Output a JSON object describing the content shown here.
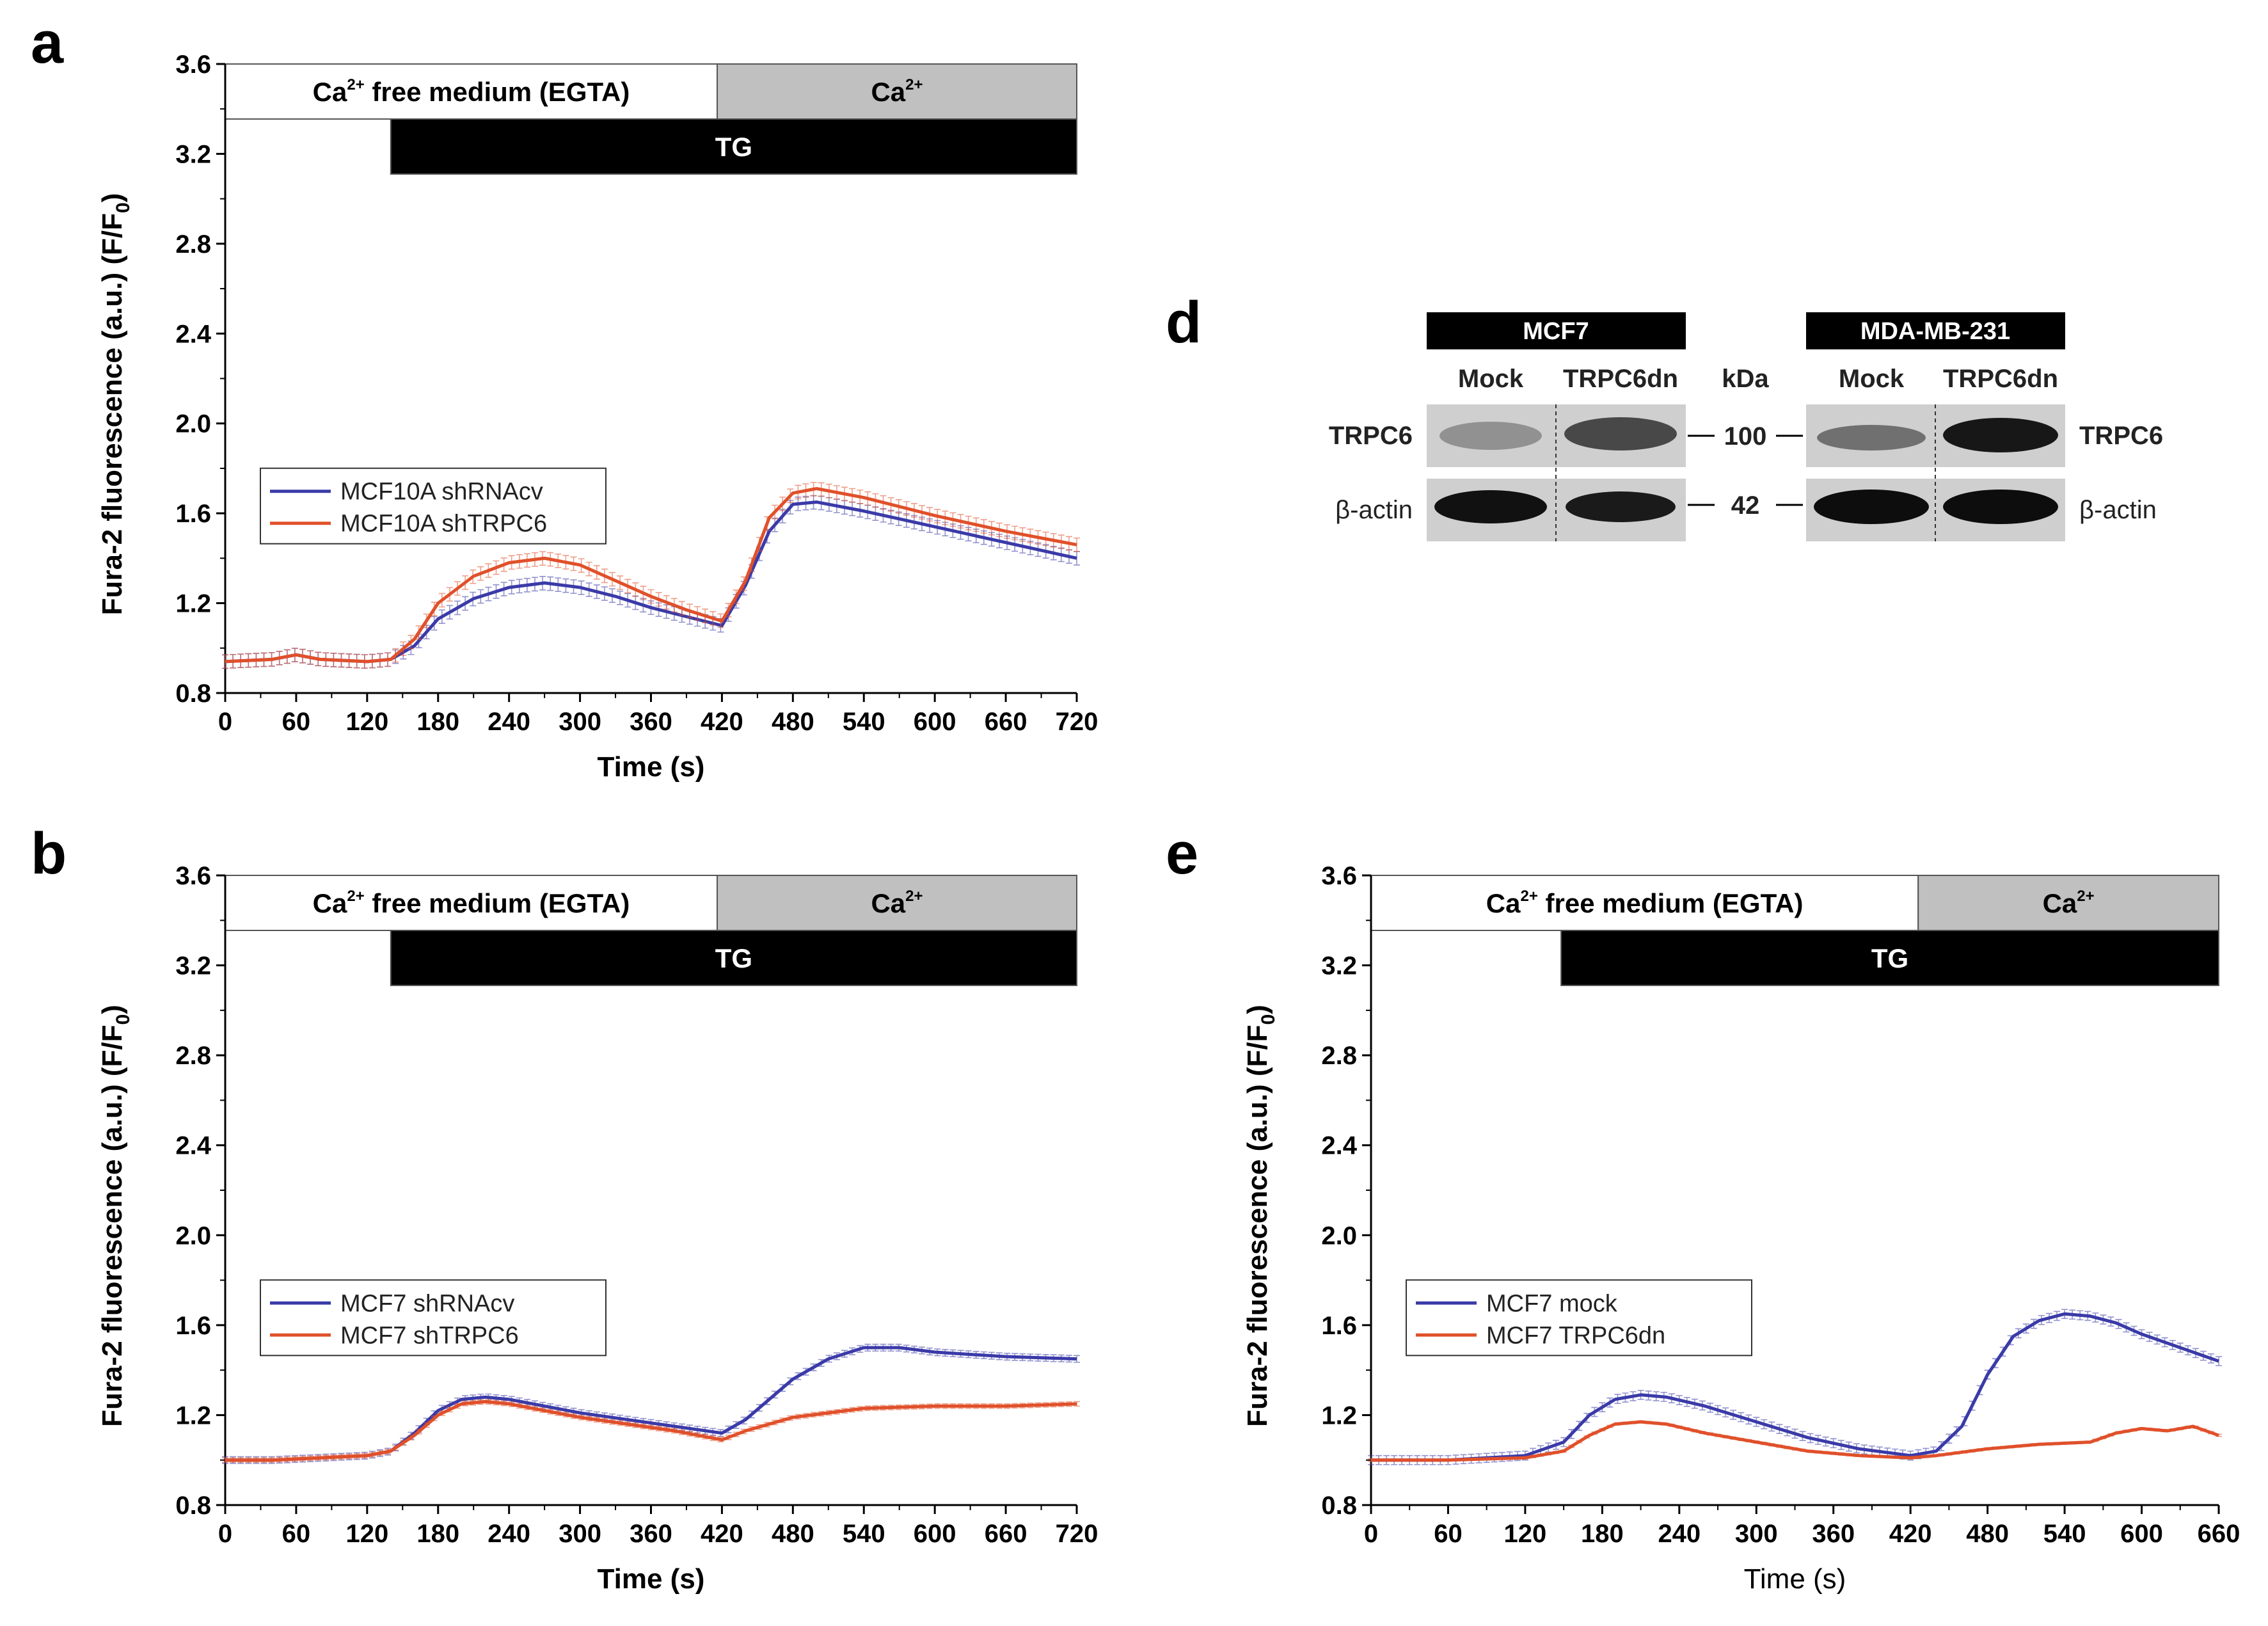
{
  "chart_data": [
    {
      "panel": "a",
      "type": "line",
      "xlabel": "Time (s)",
      "ylabel": "Fura-2 fluorescence (a.u.) (F/F",
      "ylabel_sub": "0",
      "ylabel_end": ")",
      "xlim": [
        0,
        720
      ],
      "ylim": [
        0.8,
        3.6
      ],
      "xticks": [
        0,
        60,
        120,
        180,
        240,
        300,
        360,
        420,
        480,
        540,
        600,
        660,
        720
      ],
      "yticks": [
        "0.8",
        "1.2",
        "1.6",
        "2.0",
        "2.4",
        "2.8",
        "3.2",
        "3.6"
      ],
      "bars": [
        {
          "label": "Ca",
          "sup": "2+",
          "suffix": " free medium (EGTA)",
          "start": 0,
          "end": 416,
          "fill": "#ffffff",
          "text_color": "#000000",
          "row": 0
        },
        {
          "label": "Ca",
          "sup": "2+",
          "suffix": "",
          "start": 416,
          "end": 720,
          "fill": "#c0c0c0",
          "text_color": "#000000",
          "row": 0
        },
        {
          "label": "TG",
          "sup": "",
          "suffix": "",
          "start": 140,
          "end": 720,
          "fill": "#000000",
          "text_color": "#ffffff",
          "row": 1
        }
      ],
      "legend_position": "lower-left",
      "series": [
        {
          "name": "MCF10A shRNAcv",
          "color": "#3a3aa8",
          "x": [
            0,
            40,
            60,
            80,
            120,
            140,
            160,
            180,
            210,
            240,
            270,
            300,
            330,
            360,
            390,
            420,
            440,
            460,
            480,
            500,
            540,
            600,
            660,
            720
          ],
          "y": [
            0.94,
            0.95,
            0.97,
            0.95,
            0.94,
            0.95,
            1.01,
            1.13,
            1.22,
            1.27,
            1.29,
            1.27,
            1.23,
            1.18,
            1.14,
            1.1,
            1.28,
            1.52,
            1.64,
            1.65,
            1.61,
            1.54,
            1.47,
            1.4
          ],
          "err": 0.03
        },
        {
          "name": "MCF10A shTRPC6",
          "color": "#e0502a",
          "x": [
            0,
            40,
            60,
            80,
            120,
            140,
            160,
            180,
            210,
            240,
            270,
            300,
            330,
            360,
            390,
            420,
            440,
            460,
            480,
            500,
            540,
            600,
            660,
            720
          ],
          "y": [
            0.94,
            0.95,
            0.97,
            0.95,
            0.94,
            0.95,
            1.04,
            1.2,
            1.32,
            1.38,
            1.4,
            1.37,
            1.3,
            1.23,
            1.17,
            1.12,
            1.3,
            1.58,
            1.69,
            1.71,
            1.67,
            1.59,
            1.52,
            1.46
          ],
          "err": 0.03
        }
      ]
    },
    {
      "panel": "b",
      "type": "line",
      "xlabel": "Time (s)",
      "ylabel": "Fura-2 fluorescence (a.u.) (F/F",
      "ylabel_sub": "0",
      "ylabel_end": ")",
      "xlim": [
        0,
        720
      ],
      "ylim": [
        0.8,
        3.6
      ],
      "xticks": [
        0,
        60,
        120,
        180,
        240,
        300,
        360,
        420,
        480,
        540,
        600,
        660,
        720
      ],
      "yticks": [
        "0.8",
        "1.2",
        "1.6",
        "2.0",
        "2.4",
        "2.8",
        "3.2",
        "3.6"
      ],
      "bars": [
        {
          "label": "Ca",
          "sup": "2+",
          "suffix": " free medium (EGTA)",
          "start": 0,
          "end": 416,
          "fill": "#ffffff",
          "text_color": "#000000",
          "row": 0
        },
        {
          "label": "Ca",
          "sup": "2+",
          "suffix": "",
          "start": 416,
          "end": 720,
          "fill": "#c0c0c0",
          "text_color": "#000000",
          "row": 0
        },
        {
          "label": "TG",
          "sup": "",
          "suffix": "",
          "start": 140,
          "end": 720,
          "fill": "#000000",
          "text_color": "#ffffff",
          "row": 1
        }
      ],
      "legend_position": "lower-left",
      "series": [
        {
          "name": "MCF7 shRNAcv",
          "color": "#3a3aa8",
          "x": [
            0,
            40,
            80,
            120,
            140,
            160,
            180,
            200,
            220,
            240,
            270,
            300,
            340,
            380,
            420,
            440,
            460,
            480,
            510,
            540,
            570,
            600,
            660,
            720
          ],
          "y": [
            1.0,
            1.0,
            1.01,
            1.02,
            1.04,
            1.12,
            1.22,
            1.27,
            1.28,
            1.27,
            1.24,
            1.21,
            1.18,
            1.15,
            1.12,
            1.18,
            1.27,
            1.36,
            1.45,
            1.5,
            1.5,
            1.48,
            1.46,
            1.45
          ],
          "err": 0.015
        },
        {
          "name": "MCF7 shTRPC6",
          "color": "#e0502a",
          "x": [
            0,
            40,
            80,
            120,
            140,
            160,
            180,
            200,
            220,
            240,
            270,
            300,
            340,
            380,
            420,
            440,
            480,
            540,
            600,
            660,
            720
          ],
          "y": [
            1.0,
            1.0,
            1.01,
            1.02,
            1.04,
            1.11,
            1.2,
            1.25,
            1.26,
            1.25,
            1.22,
            1.19,
            1.16,
            1.13,
            1.09,
            1.13,
            1.19,
            1.23,
            1.24,
            1.24,
            1.25
          ],
          "err": 0.01
        }
      ]
    },
    {
      "panel": "e",
      "type": "line",
      "xlabel": "Time (s)",
      "ylabel": "Fura-2 fluorescence (a.u.) (F/F",
      "ylabel_sub": "0",
      "ylabel_end": ")",
      "xlim": [
        0,
        660
      ],
      "ylim": [
        0.8,
        3.6
      ],
      "xticks": [
        0,
        60,
        120,
        180,
        240,
        300,
        360,
        420,
        480,
        540,
        600,
        660
      ],
      "yticks": [
        "0.8",
        "1.2",
        "1.6",
        "2.0",
        "2.4",
        "2.8",
        "3.2",
        "3.6"
      ],
      "bars": [
        {
          "label": "Ca",
          "sup": "2+",
          "suffix": " free medium (EGTA)",
          "start": 0,
          "end": 426,
          "fill": "#ffffff",
          "text_color": "#000000",
          "row": 0
        },
        {
          "label": "Ca",
          "sup": "2+",
          "suffix": "",
          "start": 426,
          "end": 660,
          "fill": "#c0c0c0",
          "text_color": "#000000",
          "row": 0
        },
        {
          "label": "TG",
          "sup": "",
          "suffix": "",
          "start": 148,
          "end": 660,
          "fill": "#000000",
          "text_color": "#ffffff",
          "row": 1
        }
      ],
      "legend_position": "lower-left",
      "series": [
        {
          "name": "MCF7 mock",
          "color": "#3a3aa8",
          "x": [
            0,
            60,
            120,
            150,
            170,
            190,
            210,
            230,
            260,
            300,
            340,
            380,
            420,
            440,
            460,
            480,
            500,
            520,
            540,
            560,
            580,
            600,
            630,
            660
          ],
          "y": [
            1.0,
            1.0,
            1.02,
            1.08,
            1.2,
            1.27,
            1.29,
            1.28,
            1.24,
            1.17,
            1.1,
            1.05,
            1.02,
            1.04,
            1.15,
            1.38,
            1.55,
            1.62,
            1.65,
            1.64,
            1.61,
            1.56,
            1.5,
            1.44
          ],
          "err": 0.02
        },
        {
          "name": "MCF7 TRPC6dn",
          "color": "#e0502a",
          "x": [
            0,
            60,
            120,
            150,
            170,
            190,
            210,
            230,
            260,
            300,
            340,
            380,
            420,
            440,
            480,
            520,
            560,
            580,
            600,
            620,
            640,
            660
          ],
          "y": [
            1.0,
            1.0,
            1.01,
            1.04,
            1.11,
            1.16,
            1.17,
            1.16,
            1.12,
            1.08,
            1.04,
            1.02,
            1.01,
            1.02,
            1.05,
            1.07,
            1.08,
            1.12,
            1.14,
            1.13,
            1.15,
            1.11
          ],
          "err": 0.005
        }
      ]
    }
  ],
  "panel_letters": {
    "a": "a",
    "b": "b",
    "d": "d",
    "e": "e"
  },
  "western_blot": {
    "groups": [
      {
        "name": "MCF7",
        "lanes": [
          "Mock",
          "TRPC6dn"
        ]
      },
      {
        "name": "MDA-MB-231",
        "lanes": [
          "Mock",
          "TRPC6dn"
        ]
      }
    ],
    "kda_label": "kDa",
    "rows": [
      {
        "protein": "TRPC6",
        "marker": "100"
      },
      {
        "protein": "β-actin",
        "marker": "42"
      }
    ]
  }
}
